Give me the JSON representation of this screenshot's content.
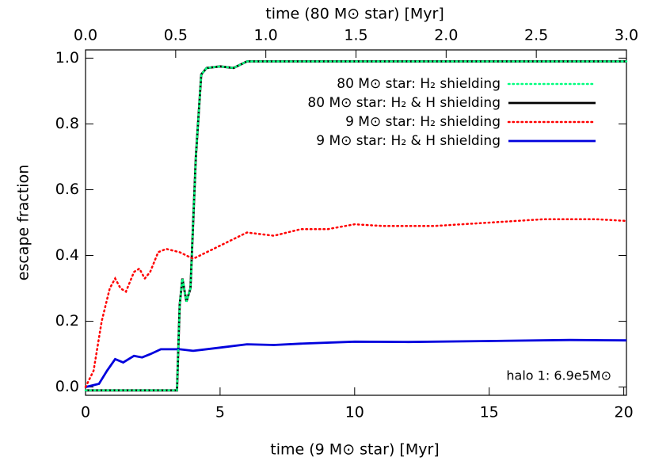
{
  "chart_data": {
    "type": "line",
    "xlabel": "time (9 M⊙ star) [Myr]",
    "x2label": "time (80 M⊙ star) [Myr]",
    "ylabel": "escape fraction",
    "annotation": "halo 1: 6.9e5M⊙",
    "xlim": [
      0,
      20.1
    ],
    "xticks": [
      0,
      5,
      10,
      15,
      20
    ],
    "x2lim": [
      0,
      3
    ],
    "x2ticks": [
      {
        "value": 0,
        "label": "0.0"
      },
      {
        "value": 0.5,
        "label": "0.5"
      },
      {
        "value": 1,
        "label": "1.0"
      },
      {
        "value": 1.5,
        "label": "1.5"
      },
      {
        "value": 2,
        "label": "2.0"
      },
      {
        "value": 2.5,
        "label": "2.5"
      },
      {
        "value": 3,
        "label": "3.0"
      }
    ],
    "ylim": [
      -0.025,
      1.025
    ],
    "yticks": [
      {
        "value": 0,
        "label": "0.0"
      },
      {
        "value": 0.2,
        "label": "0.2"
      },
      {
        "value": 0.4,
        "label": "0.4"
      },
      {
        "value": 0.6,
        "label": "0.6"
      },
      {
        "value": 0.8,
        "label": "0.8"
      },
      {
        "value": 1,
        "label": "1.0"
      }
    ],
    "series": [
      {
        "name": "80 M⊙ star: H₂ shielding",
        "color": "#00ff7f",
        "dash": "dotted",
        "x": [
          0,
          3.4,
          3.5,
          3.6,
          3.75,
          3.9,
          4.1,
          4.3,
          4.5,
          5,
          5.5,
          6,
          20.1
        ],
        "values": [
          -0.01,
          -0.01,
          0.25,
          0.33,
          0.26,
          0.3,
          0.7,
          0.95,
          0.97,
          0.975,
          0.97,
          0.99,
          0.99
        ]
      },
      {
        "name": "80 M⊙ star: H₂ & H shielding",
        "color": "#000000",
        "dash": "solid",
        "x": [
          0,
          3.4,
          3.5,
          3.6,
          3.75,
          3.9,
          4.1,
          4.3,
          4.5,
          5,
          5.5,
          6,
          20.1
        ],
        "values": [
          -0.01,
          -0.01,
          0.25,
          0.33,
          0.26,
          0.3,
          0.7,
          0.95,
          0.97,
          0.975,
          0.97,
          0.99,
          0.99
        ]
      },
      {
        "name": "9 M⊙ star: H₂ shielding",
        "color": "#ff0000",
        "dash": "dotted",
        "x": [
          0,
          0.3,
          0.6,
          0.9,
          1.1,
          1.3,
          1.5,
          1.8,
          2.0,
          2.2,
          2.4,
          2.7,
          3.0,
          3.5,
          4.0,
          4.5,
          5,
          6,
          7,
          8,
          9,
          10,
          11,
          13,
          15,
          17,
          19,
          20.1
        ],
        "values": [
          0,
          0.05,
          0.2,
          0.3,
          0.33,
          0.3,
          0.29,
          0.35,
          0.36,
          0.33,
          0.35,
          0.41,
          0.42,
          0.41,
          0.39,
          0.41,
          0.43,
          0.47,
          0.46,
          0.48,
          0.48,
          0.495,
          0.49,
          0.49,
          0.5,
          0.51,
          0.51,
          0.505
        ]
      },
      {
        "name": "9 M⊙ star: H₂ & H shielding",
        "color": "#0000dd",
        "dash": "solid",
        "x": [
          0,
          0.5,
          0.8,
          1.1,
          1.4,
          1.8,
          2.1,
          2.4,
          2.8,
          3.5,
          4.0,
          5,
          6,
          7,
          8,
          10,
          12,
          15,
          18,
          20.1
        ],
        "values": [
          0,
          0.01,
          0.05,
          0.085,
          0.075,
          0.095,
          0.09,
          0.1,
          0.115,
          0.115,
          0.11,
          0.12,
          0.13,
          0.128,
          0.132,
          0.138,
          0.137,
          0.14,
          0.143,
          0.142
        ]
      }
    ]
  }
}
